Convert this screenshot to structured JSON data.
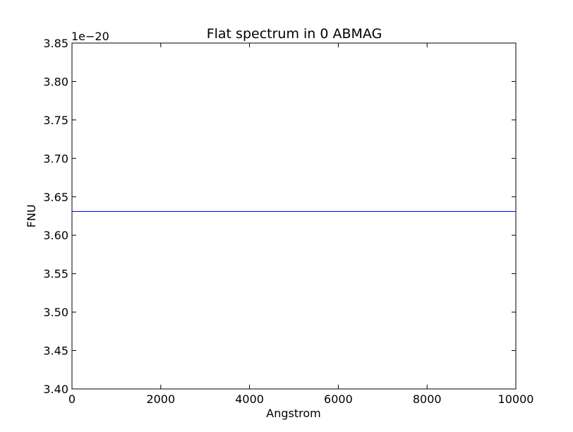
{
  "chart_data": {
    "type": "line",
    "title": "Flat spectrum in 0 ABMAG",
    "xlabel": "Angstrom",
    "ylabel": "FNU",
    "offset_label": "1e−20",
    "xlim": [
      0,
      10000
    ],
    "ylim": [
      3.4,
      3.85
    ],
    "x_ticks": [
      "0",
      "2000",
      "4000",
      "6000",
      "8000",
      "10000"
    ],
    "y_ticks": [
      "3.40",
      "3.45",
      "3.50",
      "3.55",
      "3.60",
      "3.65",
      "3.70",
      "3.75",
      "3.80",
      "3.85"
    ],
    "grid": false,
    "series": [
      {
        "x": [
          0,
          10000
        ],
        "y": [
          3.631,
          3.631
        ],
        "color": "#0000ff"
      }
    ]
  }
}
